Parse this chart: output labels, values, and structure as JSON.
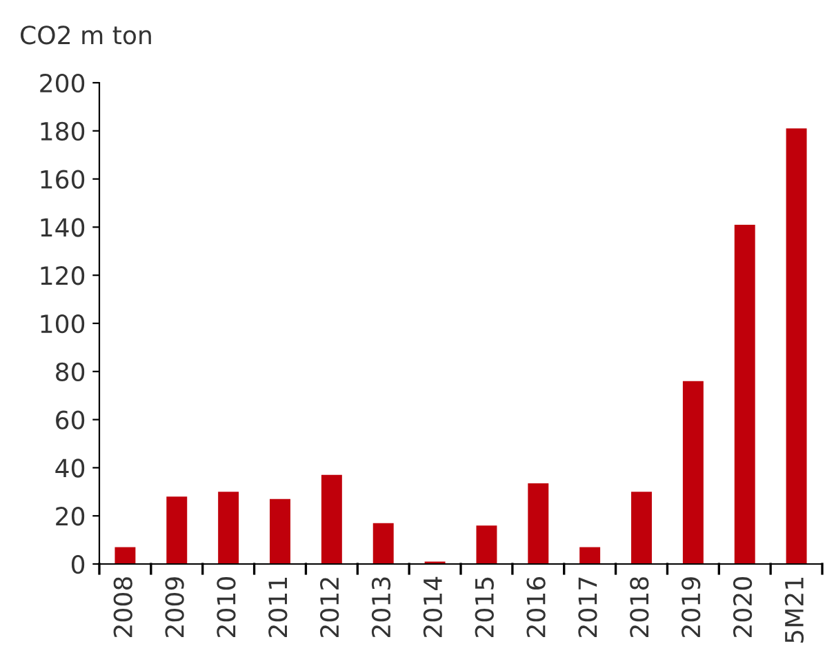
{
  "chart_data": {
    "type": "bar",
    "ylabel": "CO2 m ton",
    "categories": [
      "2008",
      "2009",
      "2010",
      "2011",
      "2012",
      "2013",
      "2014",
      "2015",
      "2016",
      "2017",
      "2018",
      "2019",
      "2020",
      "5M21"
    ],
    "values": [
      7,
      28,
      30,
      27,
      37,
      17,
      1,
      16,
      33.5,
      7,
      30,
      76,
      141,
      181
    ],
    "color": "#c0000b",
    "ylim": [
      0,
      200
    ],
    "yticks": [
      0,
      20,
      40,
      60,
      80,
      100,
      120,
      140,
      160,
      180,
      200
    ],
    "grid": false
  }
}
